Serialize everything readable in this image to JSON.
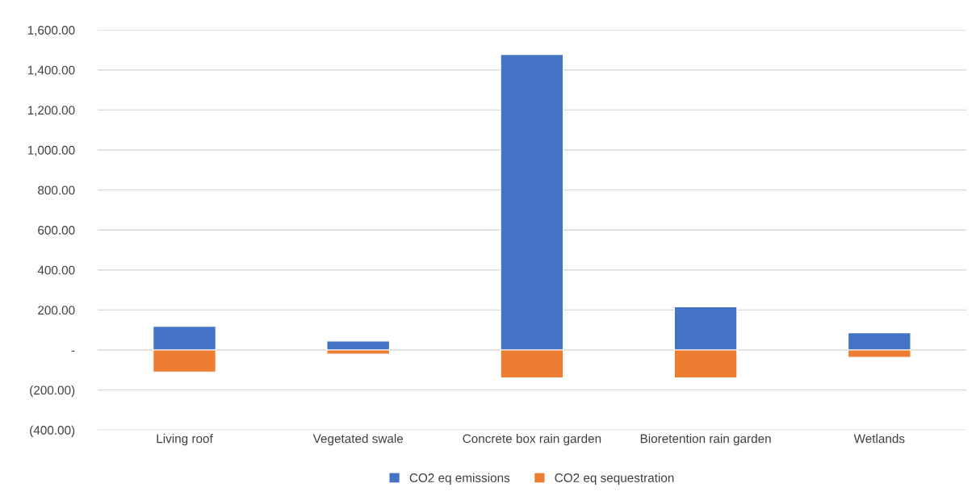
{
  "chart_data": {
    "type": "bar",
    "stacked": true,
    "categories": [
      "Living roof",
      "Vegetated swale",
      "Concrete box rain garden",
      "Bioretention rain garden",
      "Wetlands"
    ],
    "series": [
      {
        "name": "CO2 eq emissions",
        "color": "#4472c4",
        "values": [
          118,
          45,
          1477,
          216,
          86
        ]
      },
      {
        "name": "CO2 eq sequestration",
        "color": "#ed7d31",
        "values": [
          -110,
          -20,
          -139,
          -139,
          -37
        ]
      }
    ],
    "ylim": [
      -400,
      1600
    ],
    "yticks": [
      {
        "value": -400,
        "label": "(400.00)"
      },
      {
        "value": -200,
        "label": "(200.00)"
      },
      {
        "value": 0,
        "label": "-"
      },
      {
        "value": 200,
        "label": "200.00"
      },
      {
        "value": 400,
        "label": "400.00"
      },
      {
        "value": 600,
        "label": "600.00"
      },
      {
        "value": 800,
        "label": "800.00"
      },
      {
        "value": 1000,
        "label": "1,000.00"
      },
      {
        "value": 1200,
        "label": "1,200.00"
      },
      {
        "value": 1400,
        "label": "1,400.00"
      },
      {
        "value": 1600,
        "label": "1,600.00"
      }
    ],
    "grid": "y",
    "legend": "bottom"
  }
}
